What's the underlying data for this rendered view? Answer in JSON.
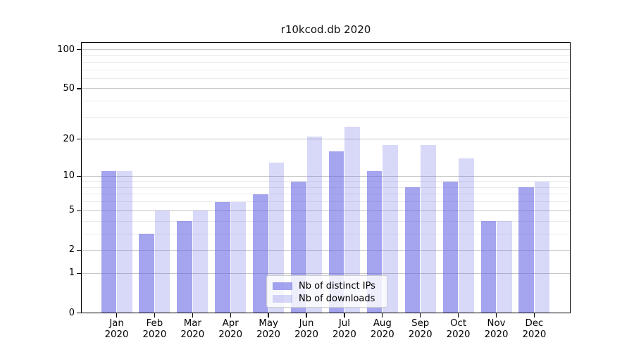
{
  "title": "r10kcod.db 2020",
  "chart_data": {
    "type": "bar",
    "title": "r10kcod.db 2020",
    "categories": [
      "Jan",
      "Feb",
      "Mar",
      "Apr",
      "May",
      "Jun",
      "Jul",
      "Aug",
      "Sep",
      "Oct",
      "Nov",
      "Dec"
    ],
    "category_year": "2020",
    "series": [
      {
        "name": "Nb of distinct IPs",
        "color": "#6262e4",
        "opacity": 0.58,
        "values": [
          11,
          3,
          4,
          6,
          7,
          9,
          16,
          11,
          8,
          9,
          4,
          8
        ]
      },
      {
        "name": "Nb of downloads",
        "color": "#6262e4",
        "opacity": 0.25,
        "values": [
          11,
          5,
          5,
          6,
          13,
          21,
          25,
          18,
          18,
          14,
          4,
          9
        ]
      }
    ],
    "yscale": "log1p",
    "ylim": [
      0,
      114
    ],
    "y_tick_values": [
      100,
      50,
      20,
      10,
      5,
      2,
      1,
      0
    ],
    "y_tick_labels": [
      "100",
      "50",
      "20",
      "10",
      "5",
      "2",
      "1",
      "0"
    ],
    "y_minor_gridlines": [
      3,
      4,
      6,
      7,
      8,
      9,
      30,
      40,
      60,
      70,
      80,
      90
    ],
    "grid": true,
    "legend_position": "lower center"
  }
}
